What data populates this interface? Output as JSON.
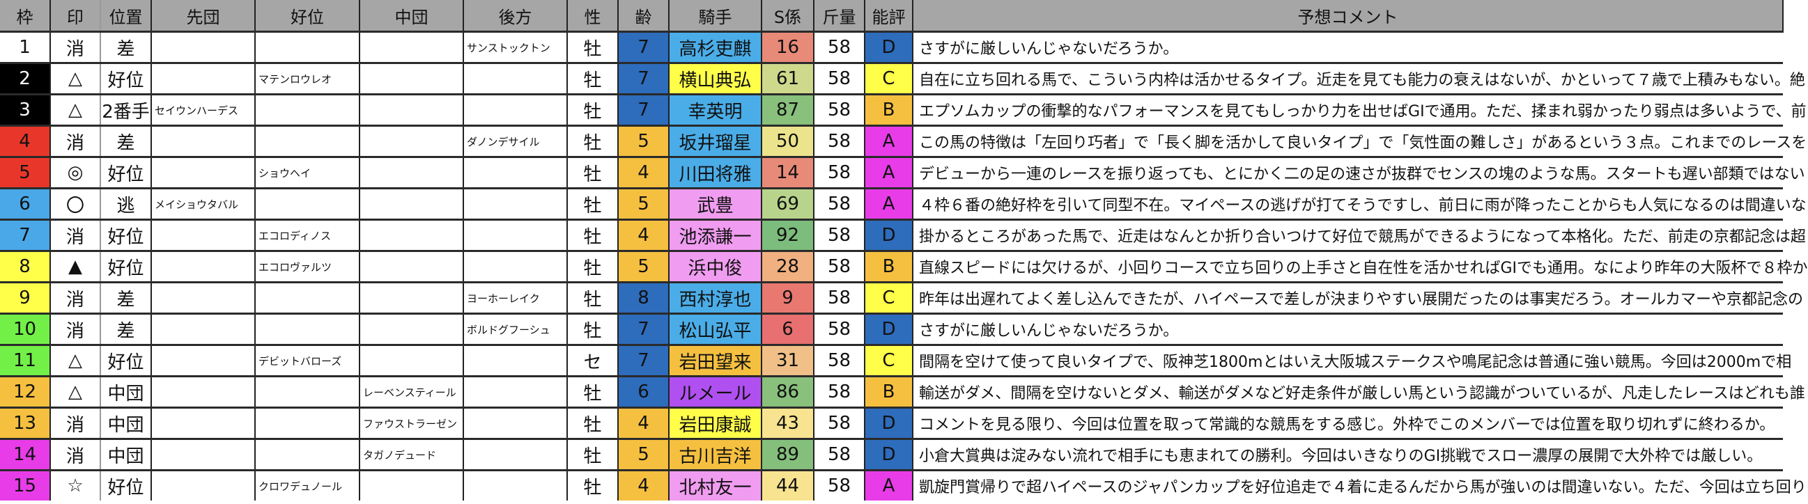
{
  "headers": [
    "枠",
    "印",
    "位置",
    "先団",
    "好位",
    "中団",
    "後方",
    "性",
    "齢",
    "騎手",
    "S係",
    "斤量",
    "能評",
    "予想コメント"
  ],
  "colors": {
    "waku": {
      "1": "#ffffff",
      "2": "#000000",
      "3": "#e8372a",
      "4": "#4aa8e8",
      "5": "#ffff4a",
      "6": "#72f048",
      "7": "#f5c040",
      "8": "#e83ce8"
    },
    "age": {
      "blue": "#2e6cbc",
      "orange": "#f5c040"
    },
    "jockey": {
      "lightblue": "#4aade8",
      "yellow": "#ffff4a",
      "pink": "#f09cf0",
      "orange": "#f5c040",
      "purple": "#b050f0"
    },
    "rating": {
      "A": "#e83ce8",
      "B": "#f5c040",
      "C": "#ffff4a",
      "D": "#2e6cbc"
    }
  },
  "rows": [
    {
      "num": "1",
      "waku": 1,
      "mark": "消",
      "pos": "差",
      "sendan": "",
      "koui": "",
      "chudan": "",
      "kohou": "サンストックトン",
      "sex": "牡",
      "age": "7",
      "ageColor": "blue",
      "jockey": "高杉吏麒",
      "jockeyColor": "lightblue",
      "s": "16",
      "sColor": "#e88a78",
      "weight": "58",
      "rating": "D",
      "comment": "さすがに厳しいんじゃないだろうか。"
    },
    {
      "num": "2",
      "waku": 2,
      "mark": "△",
      "pos": "好位",
      "sendan": "",
      "koui": "マテンロウレオ",
      "chudan": "",
      "kohou": "",
      "sex": "牡",
      "age": "7",
      "ageColor": "blue",
      "jockey": "横山典弘",
      "jockeyColor": "yellow",
      "s": "61",
      "sColor": "#cfd98c",
      "weight": "58",
      "rating": "C",
      "comment": "自在に立ち回れる馬で、こういう内枠は活かせるタイプ。近走を見ても能力の衰えはないが、かといって７歳で上積みもない。絶"
    },
    {
      "num": "3",
      "waku": 2,
      "mark": "△",
      "pos": "2番手",
      "sendan": "セイウンハーデス",
      "koui": "",
      "chudan": "",
      "kohou": "",
      "sex": "牡",
      "age": "7",
      "ageColor": "blue",
      "jockey": "幸英明",
      "jockeyColor": "lightblue",
      "s": "87",
      "sColor": "#88c07c",
      "weight": "58",
      "rating": "B",
      "comment": "エプソムカップの衝撃的なパフォーマンスを見てもしっかり力を出せばGIで通用。ただ、揉まれ弱かったり弱点は多いようで、前"
    },
    {
      "num": "4",
      "waku": 3,
      "mark": "消",
      "pos": "差",
      "sendan": "",
      "koui": "",
      "chudan": "",
      "kohou": "ダノンデサイル",
      "sex": "牡",
      "age": "5",
      "ageColor": "orange",
      "jockey": "坂井瑠星",
      "jockeyColor": "lightblue",
      "s": "50",
      "sColor": "#ece48c",
      "weight": "58",
      "rating": "A",
      "comment": "この馬の特徴は「左回り巧者」で「長く脚を活かして良いタイプ」で「気性面の難しさ」があるという３点。これまでのレースを"
    },
    {
      "num": "5",
      "waku": 3,
      "mark": "◎",
      "pos": "好位",
      "sendan": "",
      "koui": "ショウヘイ",
      "chudan": "",
      "kohou": "",
      "sex": "牡",
      "age": "4",
      "ageColor": "orange",
      "jockey": "川田将雅",
      "jockeyColor": "lightblue",
      "s": "14",
      "sColor": "#e88a78",
      "weight": "58",
      "rating": "A",
      "comment": "デビューから一連のレースを振り返っても、とにかく二の足の速さが抜群でセンスの塊のような馬。スタートも遅い部類ではない"
    },
    {
      "num": "6",
      "waku": 4,
      "mark": "〇",
      "pos": "逃",
      "sendan": "メイショウタバル",
      "koui": "",
      "chudan": "",
      "kohou": "",
      "sex": "牡",
      "age": "5",
      "ageColor": "orange",
      "jockey": "武豊",
      "jockeyColor": "pink",
      "s": "69",
      "sColor": "#b8d48c",
      "weight": "58",
      "rating": "A",
      "comment": "４枠６番の絶好枠を引いて同型不在。マイペースの逃げが打てそうですし、前日に雨が降ったことからも人気になるのは間違いな"
    },
    {
      "num": "7",
      "waku": 4,
      "mark": "消",
      "pos": "好位",
      "sendan": "",
      "koui": "エコロディノス",
      "chudan": "",
      "kohou": "",
      "sex": "牡",
      "age": "4",
      "ageColor": "orange",
      "jockey": "池添謙一",
      "jockeyColor": "pink",
      "s": "92",
      "sColor": "#7cbc7c",
      "weight": "58",
      "rating": "D",
      "comment": "掛かるところがあった馬で、近走はなんとか折り合いつけて好位で競馬ができるようになって本格化。ただ、前走の京都記念は超"
    },
    {
      "num": "8",
      "waku": 5,
      "mark": "▲",
      "pos": "好位",
      "sendan": "",
      "koui": "エコロヴァルツ",
      "chudan": "",
      "kohou": "",
      "sex": "牡",
      "age": "5",
      "ageColor": "orange",
      "jockey": "浜中俊",
      "jockeyColor": "pink",
      "s": "28",
      "sColor": "#f0b080",
      "weight": "58",
      "rating": "B",
      "comment": "直線スピードには欠けるが、小回りコースで立ち回りの上手さと自在性を活かせればGIでも通用。なにより昨年の大阪杯で８枠か"
    },
    {
      "num": "9",
      "waku": 5,
      "mark": "消",
      "pos": "差",
      "sendan": "",
      "koui": "",
      "chudan": "",
      "kohou": "ヨーホーレイク",
      "sex": "牡",
      "age": "8",
      "ageColor": "blue",
      "jockey": "西村淳也",
      "jockeyColor": "lightblue",
      "s": "9",
      "sColor": "#e87870",
      "weight": "58",
      "rating": "C",
      "comment": "昨年は出遅れてよく差し込んできたが、ハイペースで差しが決まりやすい展開だったのは事実だろう。オールカマーや京都記念の"
    },
    {
      "num": "10",
      "waku": 6,
      "mark": "消",
      "pos": "差",
      "sendan": "",
      "koui": "",
      "chudan": "",
      "kohou": "ボルドグフーシュ",
      "sex": "牡",
      "age": "7",
      "ageColor": "blue",
      "jockey": "松山弘平",
      "jockeyColor": "lightblue",
      "s": "6",
      "sColor": "#e87070",
      "weight": "58",
      "rating": "D",
      "comment": "さすがに厳しいんじゃないだろうか。"
    },
    {
      "num": "11",
      "waku": 6,
      "mark": "△",
      "pos": "好位",
      "sendan": "",
      "koui": "デビットバローズ",
      "chudan": "",
      "kohou": "",
      "sex": "セ",
      "age": "7",
      "ageColor": "blue",
      "jockey": "岩田望来",
      "jockeyColor": "orange",
      "s": "31",
      "sColor": "#f0c088",
      "weight": "58",
      "rating": "C",
      "comment": "間隔を空けて使って良いタイプで、阪神芝1800mとはいえ大阪城ステークスや鳴尾記念は普通に強い競馬。今回は2000mで相"
    },
    {
      "num": "12",
      "waku": 7,
      "mark": "△",
      "pos": "中団",
      "sendan": "",
      "koui": "",
      "chudan": "レーベンスティール",
      "kohou": "",
      "sex": "牡",
      "age": "6",
      "ageColor": "blue",
      "jockey": "ルメール",
      "jockeyColor": "purple",
      "s": "86",
      "sColor": "#88c07c",
      "weight": "58",
      "rating": "B",
      "comment": "輸送がダメ、間隔を空けないとダメ、輸送がダメなど好走条件が厳しい馬という認識がついているが、凡走したレースはどれも誰"
    },
    {
      "num": "13",
      "waku": 7,
      "mark": "消",
      "pos": "中団",
      "sendan": "",
      "koui": "",
      "chudan": "ファウストラーゼン",
      "kohou": "",
      "sex": "牡",
      "age": "4",
      "ageColor": "orange",
      "jockey": "岩田康誠",
      "jockeyColor": "yellow",
      "s": "43",
      "sColor": "#f8e490",
      "weight": "58",
      "rating": "D",
      "comment": "コメントを見る限り、今回は位置を取って常識的な競馬をする感じ。外枠でこのメンバーでは位置を取り切れずに終わるか。"
    },
    {
      "num": "14",
      "waku": 8,
      "mark": "消",
      "pos": "中団",
      "sendan": "",
      "koui": "",
      "chudan": "タガノデュード",
      "kohou": "",
      "sex": "牡",
      "age": "5",
      "ageColor": "orange",
      "jockey": "古川吉洋",
      "jockeyColor": "orange",
      "s": "89",
      "sColor": "#84c07c",
      "weight": "58",
      "rating": "D",
      "comment": "小倉大賞典は淀みない流れで相手にも恵まれての勝利。今回はいきなりのGI挑戦でスロー濃厚の展開で大外枠では厳しい。"
    },
    {
      "num": "15",
      "waku": 8,
      "mark": "☆",
      "pos": "好位",
      "sendan": "",
      "koui": "クロワデュノール",
      "chudan": "",
      "kohou": "",
      "sex": "牡",
      "age": "4",
      "ageColor": "orange",
      "jockey": "北村友一",
      "jockeyColor": "pink",
      "s": "44",
      "sColor": "#f8e490",
      "weight": "58",
      "rating": "A",
      "comment": "凱旋門賞帰りで超ハイペースのジャパンカップを好位追走で４着に走るんだから馬が強いのは間違いない。ただ、今回は立ち回り"
    }
  ]
}
